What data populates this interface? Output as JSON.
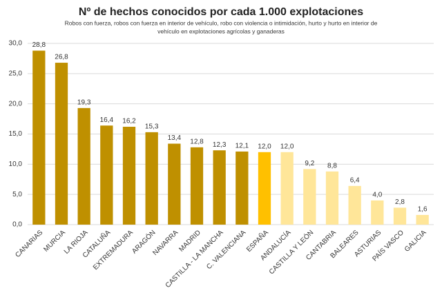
{
  "chart_data": {
    "type": "bar",
    "title": "Nº de hechos conocidos por cada 1.000 explotaciones",
    "subtitle": [
      "Robos con fuerza, robos con fuerza en interior de vehículo, robo con violencia o intimidación, hurto y hurto en interior de",
      "vehículo en explotaciones agrícolas y ganaderas"
    ],
    "categories": [
      "CANARIAS",
      "MURCIA",
      "LA RIOJA",
      "CATALUÑA",
      "EXTREMADURA",
      "ARAGÓN",
      "NAVARRA",
      "MADRID",
      "CASTILLA - LA MANCHA",
      "C. VALENCIANA",
      "ESPAÑA",
      "ANDALUCÍA",
      "CASTILLA Y LEÓN",
      "CANTABRIA",
      "BALEARES",
      "ASTURIAS",
      "PAÍS VASCO",
      "GALICIA"
    ],
    "values": [
      28.8,
      26.8,
      19.3,
      16.4,
      16.2,
      15.3,
      13.4,
      12.8,
      12.3,
      12.1,
      12.0,
      12.0,
      9.2,
      8.8,
      6.4,
      4.0,
      2.8,
      1.6
    ],
    "value_labels": [
      "28,8",
      "26,8",
      "19,3",
      "16,4",
      "16,2",
      "15,3",
      "13,4",
      "12,8",
      "12,3",
      "12,1",
      "12,0",
      "12,0",
      "9,2",
      "8,8",
      "6,4",
      "4,0",
      "2,8",
      "1,6"
    ],
    "colors": [
      "#bf9000",
      "#bf9000",
      "#bf9000",
      "#bf9000",
      "#bf9000",
      "#bf9000",
      "#bf9000",
      "#bf9000",
      "#bf9000",
      "#bf9000",
      "#ffc000",
      "#ffe699",
      "#ffe699",
      "#ffe699",
      "#ffe699",
      "#ffe699",
      "#ffe699",
      "#ffe699"
    ],
    "ylim": [
      0,
      30
    ],
    "yticks": [
      {
        "value": 0,
        "label": "0,0"
      },
      {
        "value": 5,
        "label": "5,0"
      },
      {
        "value": 10,
        "label": "10,0"
      },
      {
        "value": 15,
        "label": "15,0"
      },
      {
        "value": 20,
        "label": "20,0"
      },
      {
        "value": 25,
        "label": "25,0"
      },
      {
        "value": 30,
        "label": "30,0"
      }
    ],
    "grid": true
  }
}
